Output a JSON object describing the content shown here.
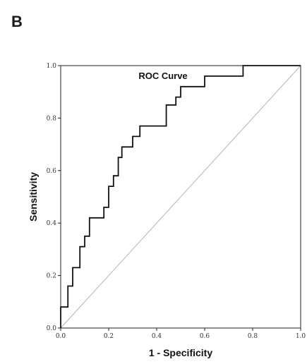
{
  "panel_label": "B",
  "chart_data": {
    "type": "line",
    "title": "ROC Curve",
    "xlabel": "1 - Specificity",
    "ylabel": "Sensitivity",
    "xlim": [
      0.0,
      1.0
    ],
    "ylim": [
      0.0,
      1.0
    ],
    "x_ticks": [
      "0.0",
      "0.2",
      "0.4",
      "0.6",
      "0.8",
      "1.0"
    ],
    "y_ticks": [
      "0.0",
      "0.2",
      "0.4",
      "0.6",
      "0.8",
      "1.0"
    ],
    "grid": false,
    "series": [
      {
        "kind": "step",
        "color": "#111111",
        "x": [
          0.0,
          0.0,
          0.03,
          0.03,
          0.05,
          0.05,
          0.08,
          0.08,
          0.1,
          0.1,
          0.12,
          0.12,
          0.18,
          0.18,
          0.2,
          0.2,
          0.22,
          0.22,
          0.24,
          0.24,
          0.255,
          0.255,
          0.265,
          0.265,
          0.28,
          0.28,
          0.3,
          0.3,
          0.31,
          0.31,
          0.33,
          0.33,
          0.44,
          0.44,
          0.48,
          0.48,
          0.5,
          0.5,
          0.53,
          0.53,
          0.6,
          0.6,
          0.76,
          0.76,
          1.0
        ],
        "y": [
          0.0,
          0.08,
          0.08,
          0.16,
          0.16,
          0.23,
          0.23,
          0.31,
          0.31,
          0.35,
          0.35,
          0.42,
          0.42,
          0.46,
          0.46,
          0.54,
          0.54,
          0.58,
          0.58,
          0.65,
          0.65,
          0.69,
          0.69,
          0.69,
          0.69,
          0.69,
          0.69,
          0.73,
          0.73,
          0.73,
          0.73,
          0.77,
          0.77,
          0.85,
          0.85,
          0.88,
          0.88,
          0.92,
          0.92,
          0.92,
          0.92,
          0.96,
          0.96,
          1.0,
          1.0
        ]
      },
      {
        "kind": "reference",
        "color": "#b5b5b5",
        "x": [
          0.0,
          1.0
        ],
        "y": [
          0.0,
          1.0
        ]
      }
    ]
  }
}
